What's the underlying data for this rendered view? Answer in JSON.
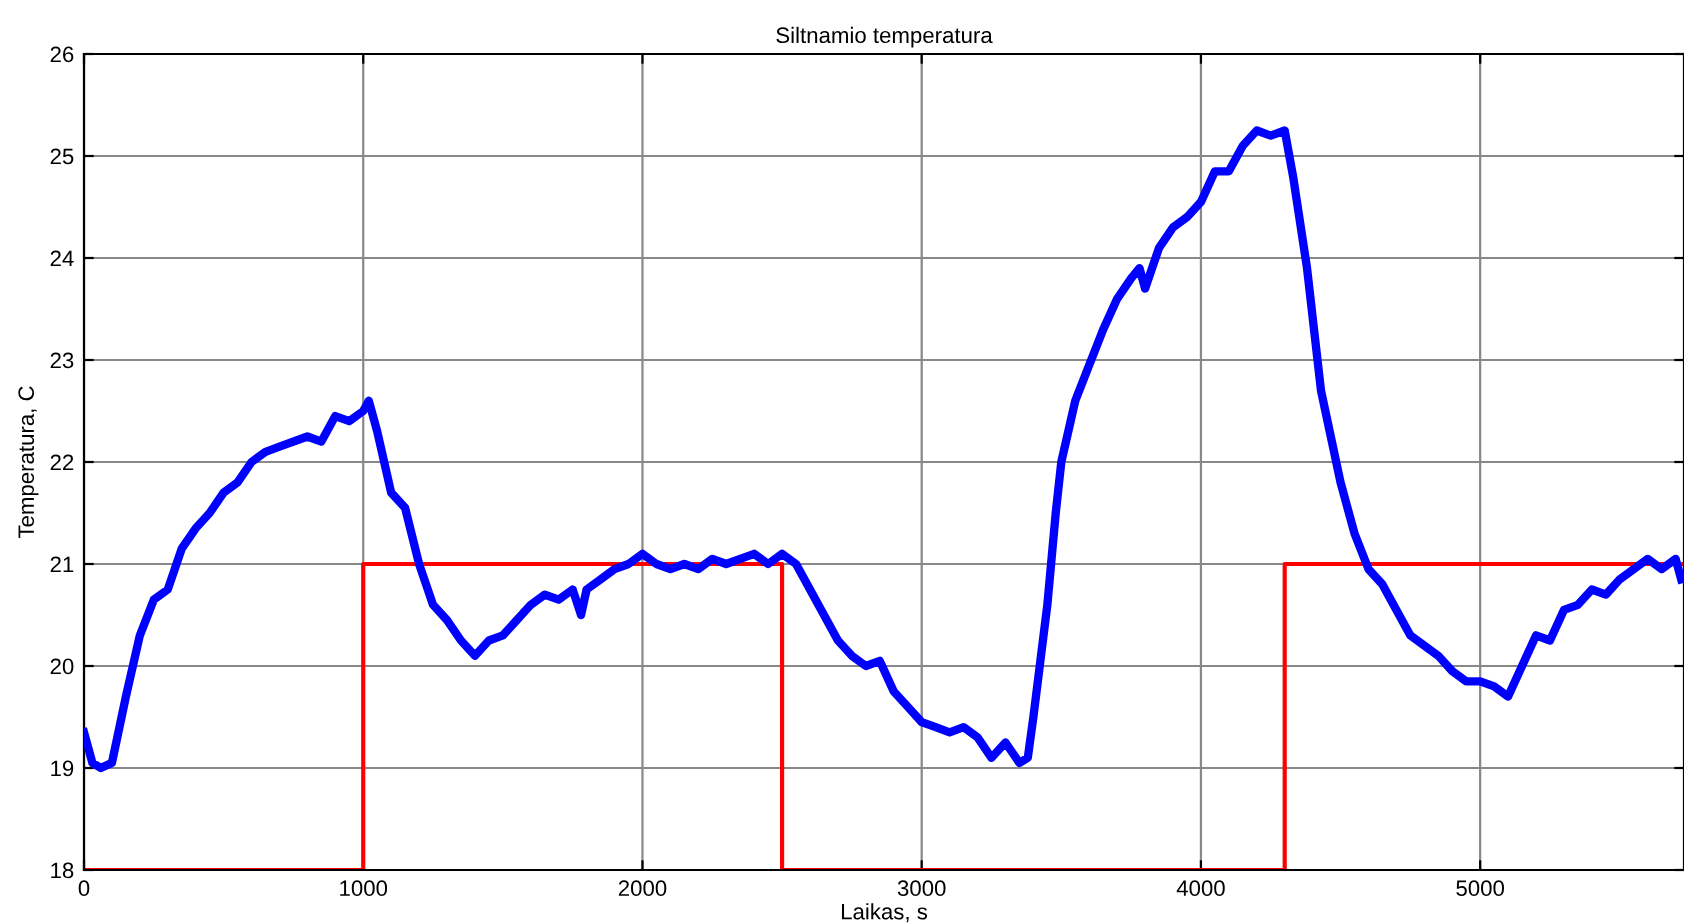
{
  "chart_data": {
    "type": "line",
    "title": "Siltnamio temperatura",
    "xlabel": "Laikas, s",
    "ylabel": "Temperatura, C",
    "xlim": [
      0,
      5730
    ],
    "ylim": [
      18,
      26
    ],
    "xticks": [
      0,
      1000,
      2000,
      3000,
      4000,
      5000
    ],
    "yticks": [
      18,
      19,
      20,
      21,
      22,
      23,
      24,
      25,
      26
    ],
    "grid": true,
    "legend": false,
    "series": [
      {
        "color": "#0000ff",
        "x": [
          0,
          30,
          60,
          100,
          150,
          200,
          250,
          300,
          350,
          400,
          450,
          500,
          550,
          600,
          650,
          700,
          800,
          850,
          900,
          950,
          1000,
          1020,
          1050,
          1100,
          1150,
          1200,
          1250,
          1300,
          1350,
          1400,
          1450,
          1500,
          1550,
          1600,
          1650,
          1700,
          1750,
          1780,
          1800,
          1850,
          1900,
          1950,
          2000,
          2050,
          2100,
          2150,
          2200,
          2250,
          2300,
          2350,
          2400,
          2450,
          2500,
          2550,
          2600,
          2650,
          2700,
          2750,
          2800,
          2850,
          2900,
          2950,
          3000,
          3050,
          3100,
          3150,
          3200,
          3250,
          3300,
          3350,
          3380,
          3400,
          3450,
          3480,
          3500,
          3550,
          3600,
          3650,
          3700,
          3750,
          3780,
          3800,
          3850,
          3900,
          3950,
          4000,
          4050,
          4100,
          4150,
          4200,
          4250,
          4300,
          4330,
          4380,
          4430,
          4500,
          4550,
          4600,
          4650,
          4700,
          4750,
          4800,
          4850,
          4900,
          4950,
          5000,
          5050,
          5100,
          5150,
          5200,
          5250,
          5300,
          5350,
          5400,
          5450,
          5500,
          5550,
          5600,
          5650,
          5700,
          5720
        ],
        "values": [
          19.35,
          19.05,
          19.0,
          19.05,
          19.7,
          20.3,
          20.65,
          20.75,
          21.15,
          21.35,
          21.5,
          21.7,
          21.8,
          22.0,
          22.1,
          22.15,
          22.25,
          22.2,
          22.45,
          22.4,
          22.5,
          22.6,
          22.3,
          21.7,
          21.55,
          21.0,
          20.6,
          20.45,
          20.25,
          20.1,
          20.25,
          20.3,
          20.45,
          20.6,
          20.7,
          20.65,
          20.75,
          20.5,
          20.75,
          20.85,
          20.95,
          21.0,
          21.1,
          21.0,
          20.95,
          21.0,
          20.95,
          21.05,
          21.0,
          21.05,
          21.1,
          21.0,
          21.1,
          21.0,
          20.75,
          20.5,
          20.25,
          20.1,
          20.0,
          20.05,
          19.75,
          19.6,
          19.45,
          19.4,
          19.35,
          19.4,
          19.3,
          19.1,
          19.25,
          19.05,
          19.1,
          19.5,
          20.6,
          21.5,
          22.0,
          22.6,
          22.95,
          23.3,
          23.6,
          23.8,
          23.9,
          23.7,
          24.1,
          24.3,
          24.4,
          24.55,
          24.85,
          24.85,
          25.1,
          25.25,
          25.2,
          25.25,
          24.8,
          23.9,
          22.7,
          21.8,
          21.3,
          20.95,
          20.8,
          20.55,
          20.3,
          20.2,
          20.1,
          19.95,
          19.85,
          19.85,
          19.8,
          19.7,
          20.0,
          20.3,
          20.25,
          20.55,
          20.6,
          20.75,
          20.7,
          20.85,
          20.95,
          21.05,
          20.95,
          21.05,
          20.85
        ]
      },
      {
        "type": "step",
        "color": "#ff0000",
        "x": [
          0,
          1000,
          2500,
          4300,
          5730
        ],
        "values": [
          18,
          21,
          18,
          21,
          21
        ]
      }
    ]
  }
}
